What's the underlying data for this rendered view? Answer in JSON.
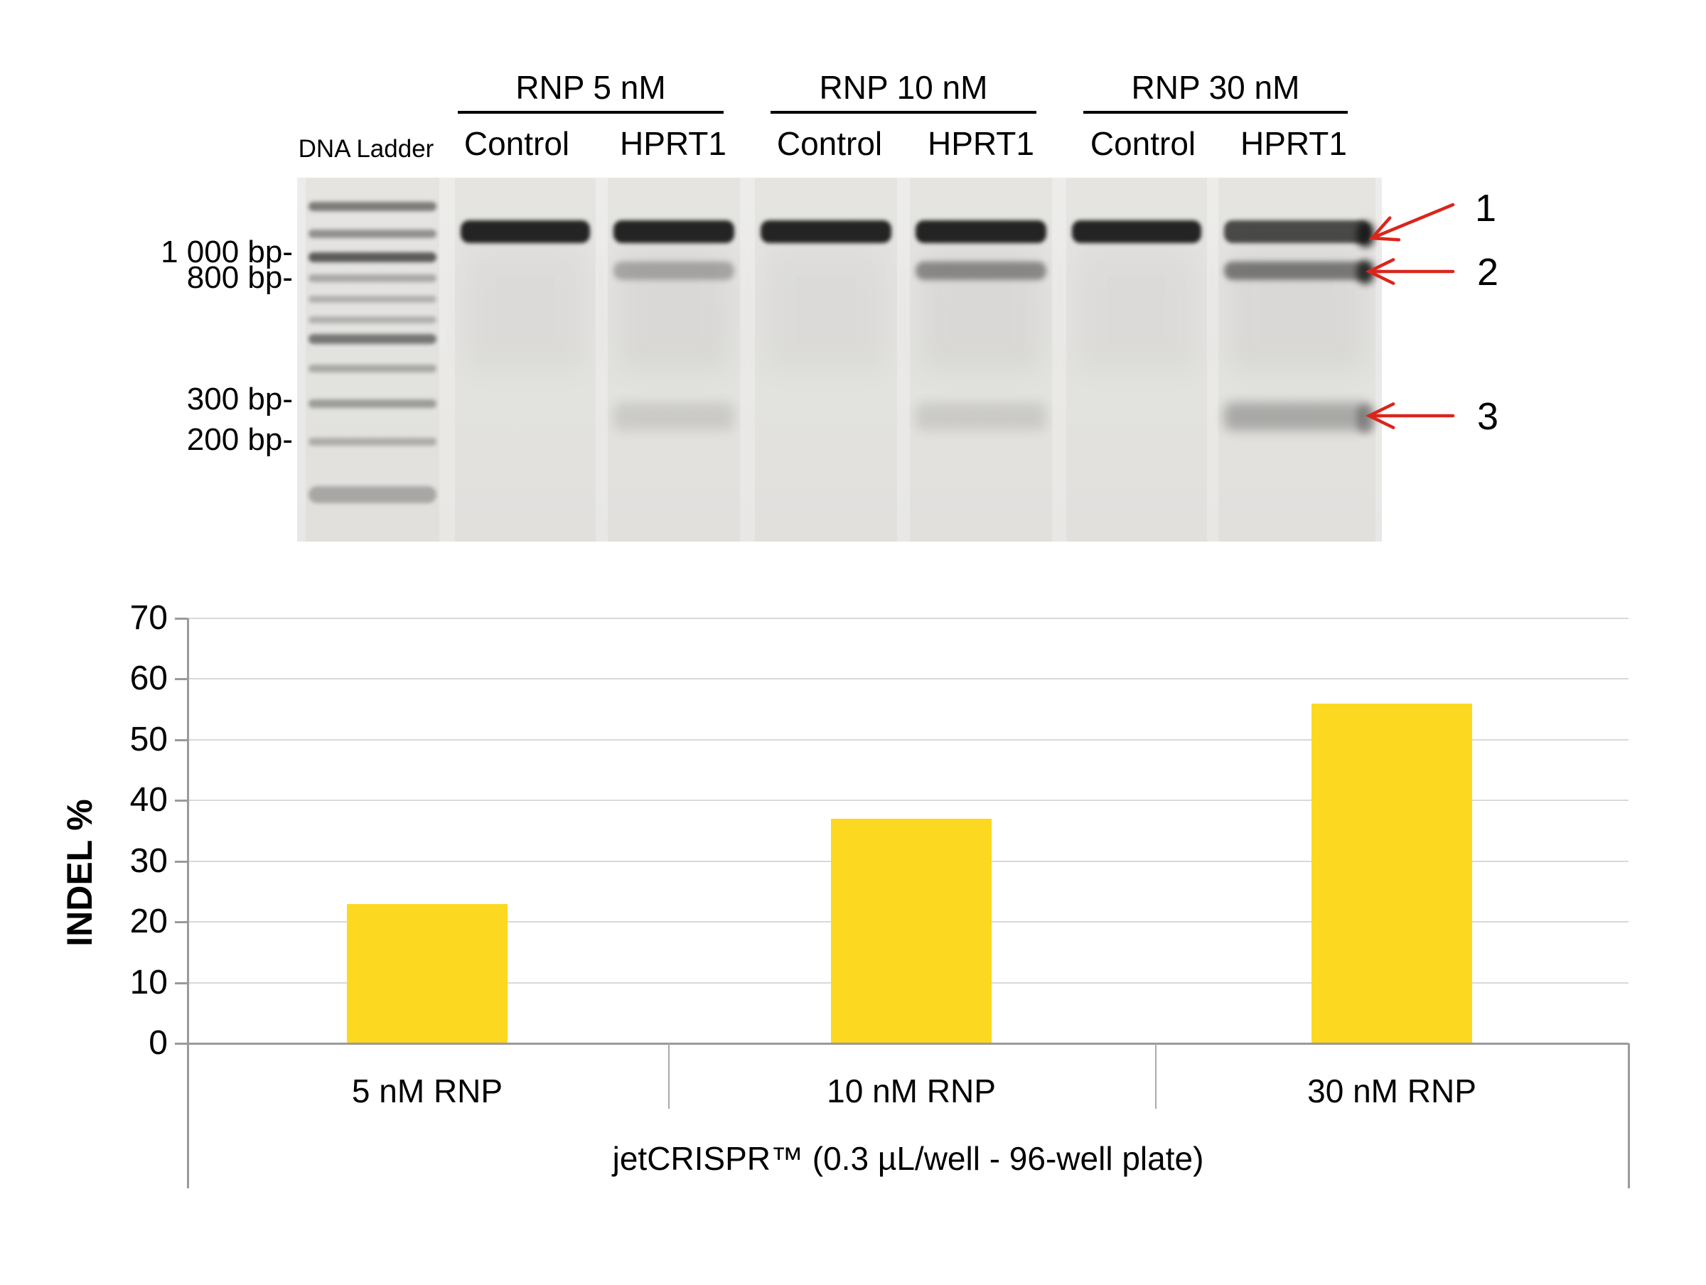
{
  "gel": {
    "groups": [
      "RNP 5 nM",
      "RNP 10 nM",
      "RNP 30 nM"
    ],
    "ladder_label": "DNA Ladder",
    "column_labels": [
      "Control",
      "HPRT1",
      "Control",
      "HPRT1",
      "Control",
      "HPRT1"
    ],
    "size_markers": [
      "1 000 bp-",
      "800 bp-",
      "300 bp-",
      "200 bp-"
    ],
    "arrows": [
      "1",
      "2",
      "3"
    ],
    "arrow_color": "#da251d",
    "lanes": [
      {
        "name": "dna-ladder",
        "type": "ladder"
      },
      {
        "name": "rnp5-control",
        "bands": {
          "uncut": "strong"
        }
      },
      {
        "name": "rnp5-hprt1",
        "bands": {
          "uncut": "strong",
          "cut_upper": "faint",
          "cut_lower": "very_faint"
        }
      },
      {
        "name": "rnp10-control",
        "bands": {
          "uncut": "strong"
        }
      },
      {
        "name": "rnp10-hprt1",
        "bands": {
          "uncut": "strong",
          "cut_upper": "medium",
          "cut_lower": "very_faint"
        }
      },
      {
        "name": "rnp30-control",
        "bands": {
          "uncut": "strong"
        }
      },
      {
        "name": "rnp30-hprt1",
        "bands": {
          "uncut": "medium_strong",
          "cut_upper": "medium_plus",
          "cut_lower": "faint"
        }
      }
    ]
  },
  "chart_data": {
    "type": "bar",
    "categories": [
      "5 nM RNP",
      "10 nM RNP",
      "30 nM RNP"
    ],
    "values": [
      23,
      37,
      56
    ],
    "title": "",
    "xlabel": "jetCRISPR™ (0.3 µL/well - 96-well plate)",
    "ylabel": "INDEL %",
    "ylim": [
      0,
      70
    ],
    "ytick_step": 10,
    "grid": true,
    "legend": false,
    "bar_color": "#fdd820",
    "grid_color": "#d9d9d9",
    "axis_color": "#9a9a9a"
  }
}
